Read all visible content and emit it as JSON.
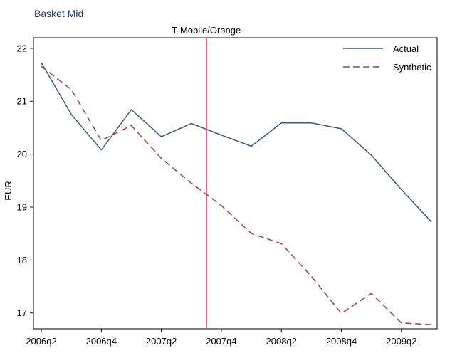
{
  "chart_data": {
    "type": "line",
    "subtitle": "Basket Mid",
    "ylabel": "EUR",
    "xlabel": "",
    "x": [
      "2006q2",
      "2006q3",
      "2006q4",
      "2007q1",
      "2007q2",
      "2007q3",
      "2007q4",
      "2008q1",
      "2008q2",
      "2008q3",
      "2008q4",
      "2009q1",
      "2009q2",
      "2009q3"
    ],
    "x_ticks": [
      "2006q2",
      "2006q4",
      "2007q2",
      "2007q4",
      "2008q2",
      "2008q4",
      "2009q2"
    ],
    "y_ticks": [
      17,
      18,
      19,
      20,
      21,
      22
    ],
    "ylim": [
      16.7,
      22.2
    ],
    "series": [
      {
        "name": "Actual",
        "color": "#3b5878",
        "dash": "solid",
        "values": [
          21.73,
          20.75,
          20.08,
          20.84,
          20.33,
          20.58,
          20.36,
          20.15,
          20.59,
          20.59,
          20.48,
          19.98,
          19.33,
          18.72
        ]
      },
      {
        "name": "Synthetic",
        "color": "#94444a",
        "dash": "dashed",
        "values": [
          21.66,
          21.22,
          20.26,
          20.54,
          19.92,
          19.45,
          19.03,
          18.5,
          18.31,
          17.69,
          16.99,
          17.37,
          16.81,
          16.78
        ]
      }
    ],
    "annotation": {
      "label": "T-Mobile/Orange",
      "x_position": 5.5,
      "color": "#c2185b"
    },
    "legend_position": "top-right",
    "grid": false
  }
}
